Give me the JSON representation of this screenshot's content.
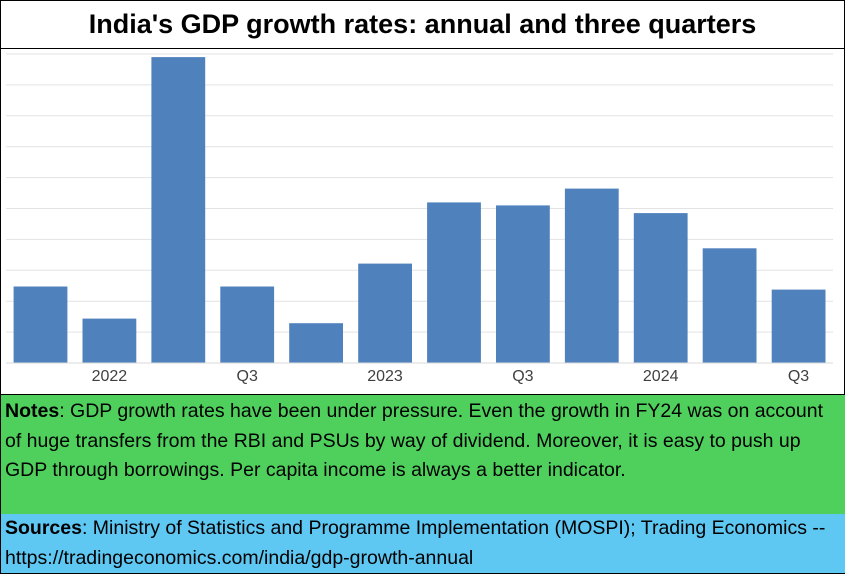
{
  "title": "India's GDP growth rates: annual and three quarters",
  "chart_data": {
    "type": "bar",
    "categories": [
      "",
      "2022",
      "",
      "Q3",
      "",
      "2023",
      "",
      "Q3",
      "",
      "2024",
      "",
      "Q3"
    ],
    "values": [
      2.5,
      1.45,
      10.0,
      2.5,
      1.3,
      3.25,
      5.25,
      5.15,
      5.7,
      4.9,
      3.75,
      2.4
    ],
    "ylim": [
      0,
      10.1
    ],
    "grid": true,
    "bar_color": "#4f81bd",
    "xlabel": "",
    "ylabel": ""
  },
  "notes": {
    "label": "Notes",
    "text": ": GDP growth rates have been under pressure.  Even the growth in FY24 was on account of huge transfers from the RBI and PSUs by way of dividend.  Moreover, it is easy to push up GDP through borrowings.  Per capita income is always a better indicator.",
    "bg_color": "#4fd05d"
  },
  "sources": {
    "label": "Sources",
    "text": ": Ministry of Statistics and Programme Implementation (MOSPI); Trading Economics -- https://tradingeconomics.com/india/gdp-growth-annual",
    "bg_color": "#5ec7f2"
  }
}
